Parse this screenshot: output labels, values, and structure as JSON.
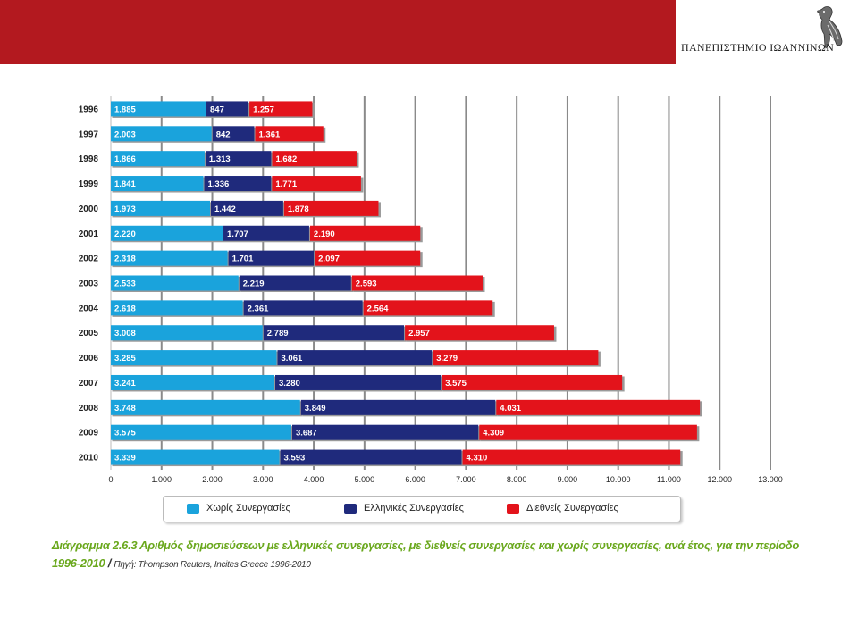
{
  "header": {
    "university": "ΠΑΝΕΠΙΣΤΗΜΙΟ ΙΩΑΝΝΙΝΩΝ",
    "bar_color": "#b3191f",
    "logo_icon": "eagle-icon"
  },
  "chart_data": {
    "type": "bar",
    "orientation": "horizontal",
    "stacked": true,
    "categories": [
      "1996",
      "1997",
      "1998",
      "1999",
      "2000",
      "2001",
      "2002",
      "2003",
      "2004",
      "2005",
      "2006",
      "2007",
      "2008",
      "2009",
      "2010"
    ],
    "series": [
      {
        "name": "Χωρίς Συνεργασίες",
        "color": "#1aa3dc",
        "values": [
          1885,
          2003,
          1866,
          1841,
          1973,
          2220,
          2318,
          2533,
          2618,
          3008,
          3285,
          3241,
          3748,
          3575,
          3339
        ],
        "labels": [
          "1.885",
          "2.003",
          "1.866",
          "1.841",
          "1.973",
          "2.220",
          "2.318",
          "2.533",
          "2.618",
          "3.008",
          "3.285",
          "3.241",
          "3.748",
          "3.575",
          "3.339"
        ]
      },
      {
        "name": "Ελληνικές Συνεργασίες",
        "color": "#1f2a7c",
        "values": [
          847,
          842,
          1313,
          1336,
          1442,
          1707,
          1701,
          2219,
          2361,
          2789,
          3061,
          3280,
          3849,
          3687,
          3593
        ],
        "labels": [
          "847",
          "842",
          "1.313",
          "1.336",
          "1.442",
          "1.707",
          "1.701",
          "2.219",
          "2.361",
          "2.789",
          "3.061",
          "3.280",
          "3.849",
          "3.687",
          "3.593"
        ]
      },
      {
        "name": "Διεθνείς Συνεργασίες",
        "color": "#e3131b",
        "values": [
          1257,
          1361,
          1682,
          1771,
          1878,
          2190,
          2097,
          2593,
          2564,
          2957,
          3279,
          3575,
          4031,
          4309,
          4310
        ],
        "labels": [
          "1.257",
          "1.361",
          "1.682",
          "1.771",
          "1.878",
          "2.190",
          "2.097",
          "2.593",
          "2.564",
          "2.957",
          "3.279",
          "3.575",
          "4.031",
          "4.309",
          "4.310"
        ]
      }
    ],
    "x_ticks": [
      "0",
      "1.000",
      "2.000",
      "3.000",
      "4.000",
      "5.000",
      "6.000",
      "7.000",
      "8.000",
      "9.000",
      "10.000",
      "11.000",
      "12.000",
      "13.000"
    ],
    "xlim": [
      0,
      13000
    ],
    "grid": true,
    "legend_position": "bottom",
    "caption": {
      "title": "Διάγραμμα 2.6.3  Αριθμός δημοσιεύσεων με ελληνικές συνεργασίες, με διεθνείς συνεργασίες και χωρίς συνεργασίες, ανά έτος, για την περίοδο 1996-2010",
      "separator": " / ",
      "source": "Πηγή: Thompson Reuters, Incites Greece 1996-2010"
    }
  }
}
